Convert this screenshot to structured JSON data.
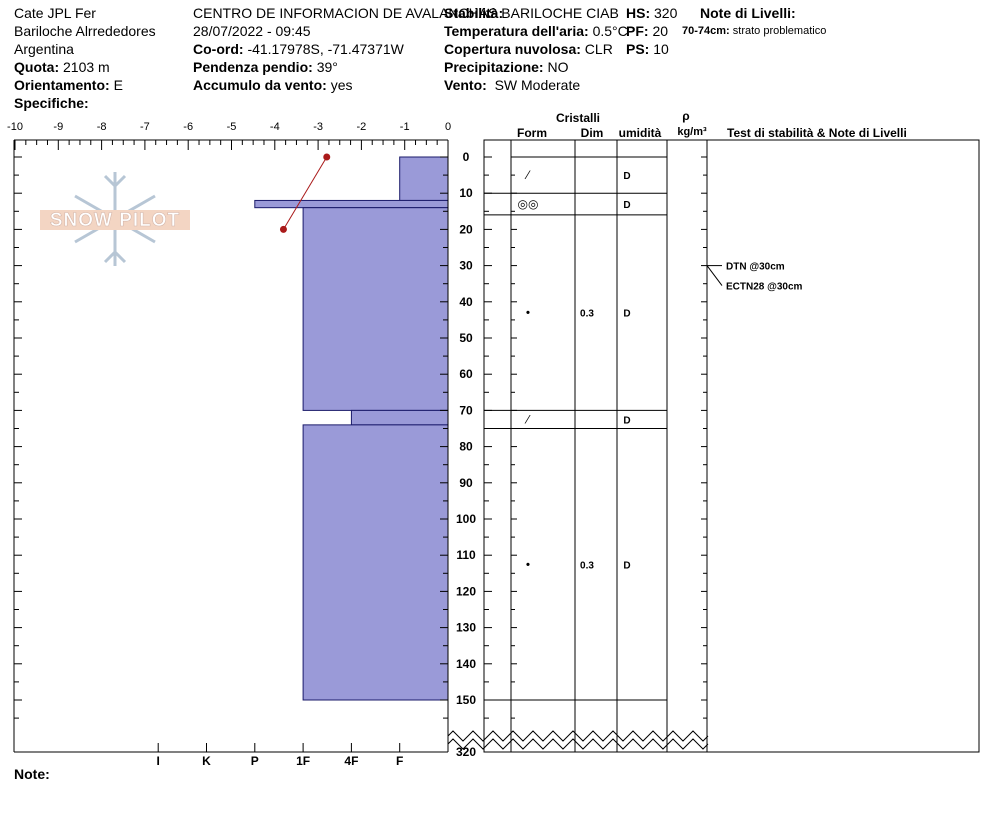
{
  "header": {
    "col1": {
      "observer": "Cate JPL Fer",
      "location": "Bariloche Alrrededores",
      "country": "Argentina",
      "elevation_label": "Quota:",
      "elevation_value": "2103 m",
      "aspect_label": "Orientamento:",
      "aspect_value": "E",
      "specifics_label": "Specifiche:"
    },
    "col2": {
      "organization": "CENTRO DE INFORMACION DE AVALANCHAS BARILOCHE CIAB",
      "datetime": "28/07/2022 - 09:45",
      "coord_label": "Co-ord:",
      "coord_value": "-41.17978S, -71.47371W",
      "slope_label": "Pendenza pendio:",
      "slope_value": "39°",
      "windload_label": "Accumulo da vento:",
      "windload_value": "yes"
    },
    "col3": {
      "stability_label": "Stabilità:",
      "airtemp_label": "Temperatura dell'aria:",
      "airtemp_value": "0.5°C",
      "cloud_label": "Copertura nuvolosa:",
      "cloud_value": "CLR",
      "precip_label": "Precipitazione:",
      "precip_value": "NO",
      "wind_label": "Vento:",
      "wind_value": "SW Moderate"
    },
    "col4": {
      "hs_label": "HS:",
      "hs_value": "320",
      "pf_label": "PF:",
      "pf_value": "20",
      "ps_label": "PS:",
      "ps_value": "10"
    },
    "layer_notes": {
      "title": "Note di Livelli",
      "entry_range": "70-74cm:",
      "entry_text": "strato problematico"
    }
  },
  "logo_text": "SNOW PILOT",
  "note_label": "Note:",
  "columns": {
    "crystals": "Cristalli",
    "form": "Form",
    "dim": "Dim",
    "moisture": "umidità",
    "rho": "ρ",
    "density_unit": "kg/m³",
    "tests": "Test di stabilità & Note di Livelli"
  },
  "chart_data": {
    "type": "bar",
    "title": "",
    "x_axis_top": {
      "ticks": [
        -10,
        -9,
        -8,
        -7,
        -6,
        -5,
        -4,
        -3,
        -2,
        -1,
        0
      ],
      "range": [
        -10,
        0
      ]
    },
    "hardness_axis": {
      "labels": [
        "I",
        "K",
        "P",
        "1F",
        "4F",
        "F"
      ],
      "values": [
        6,
        5,
        4,
        3,
        2,
        1
      ]
    },
    "depth_axis": {
      "ticks": [
        0,
        10,
        20,
        30,
        40,
        50,
        60,
        70,
        80,
        90,
        100,
        110,
        120,
        130,
        140,
        150
      ],
      "range": [
        0,
        160
      ],
      "bottom_label": "320"
    },
    "hardness_profile": [
      {
        "top": 0,
        "bottom": 12,
        "hardness_value": 1
      },
      {
        "top": 12,
        "bottom": 14,
        "hardness_value": 4
      },
      {
        "top": 14,
        "bottom": 70,
        "hardness_value": 3
      },
      {
        "top": 70,
        "bottom": 74,
        "hardness_value": 2
      },
      {
        "top": 74,
        "bottom": 150,
        "hardness_value": 3
      }
    ],
    "temperature_profile": [
      {
        "depth": 0,
        "temp": -2.8
      },
      {
        "depth": 20,
        "temp": -3.8
      }
    ],
    "layers": [
      {
        "top": 0,
        "bottom": 10,
        "form": "⁄",
        "size": "",
        "moisture": "D"
      },
      {
        "top": 10,
        "bottom": 16,
        "form": "◎◎",
        "size": "",
        "moisture": "D"
      },
      {
        "top": 16,
        "bottom": 70,
        "form": "•",
        "size": "0.3",
        "moisture": "D"
      },
      {
        "top": 70,
        "bottom": 75,
        "form": "⁄",
        "size": "",
        "moisture": "D"
      },
      {
        "top": 75,
        "bottom": 150,
        "form": "•",
        "size": "0.3",
        "moisture": "D"
      }
    ],
    "stability_tests": [
      {
        "depth": 30,
        "label": "DTN @30cm"
      },
      {
        "depth": 30,
        "label": "ECTN28 @30cm"
      }
    ],
    "colors": {
      "hardness_fill": "#9a9ad8",
      "hardness_stroke": "#1a1a6a",
      "temperature": "#aa1a1a"
    }
  }
}
